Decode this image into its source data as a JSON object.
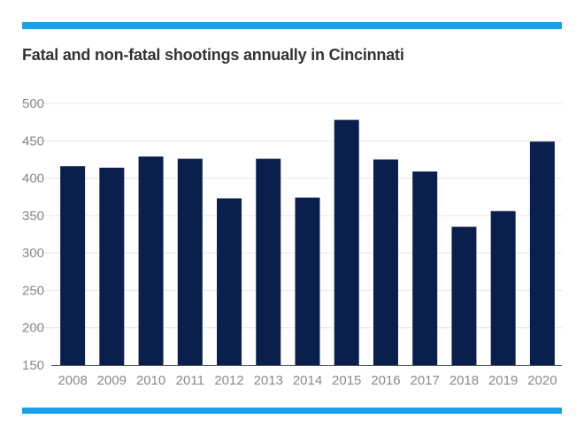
{
  "colors": {
    "accent": "#1aa0e6",
    "bar": "#0b1f4d",
    "grid": "#e6e6e6",
    "axis": "#555555"
  },
  "chart_data": {
    "type": "bar",
    "title": "Fatal and non-fatal shootings annually in Cincinnati",
    "xlabel": "",
    "ylabel": "",
    "categories": [
      "2008",
      "2009",
      "2010",
      "2011",
      "2012",
      "2013",
      "2014",
      "2015",
      "2016",
      "2017",
      "2018",
      "2019",
      "2020"
    ],
    "values": [
      416,
      414,
      429,
      426,
      373,
      426,
      374,
      478,
      425,
      409,
      335,
      356,
      449
    ],
    "ylim": [
      150,
      500
    ],
    "yticks": [
      150,
      200,
      250,
      300,
      350,
      400,
      450,
      500
    ],
    "grid": true,
    "legend": "none"
  }
}
